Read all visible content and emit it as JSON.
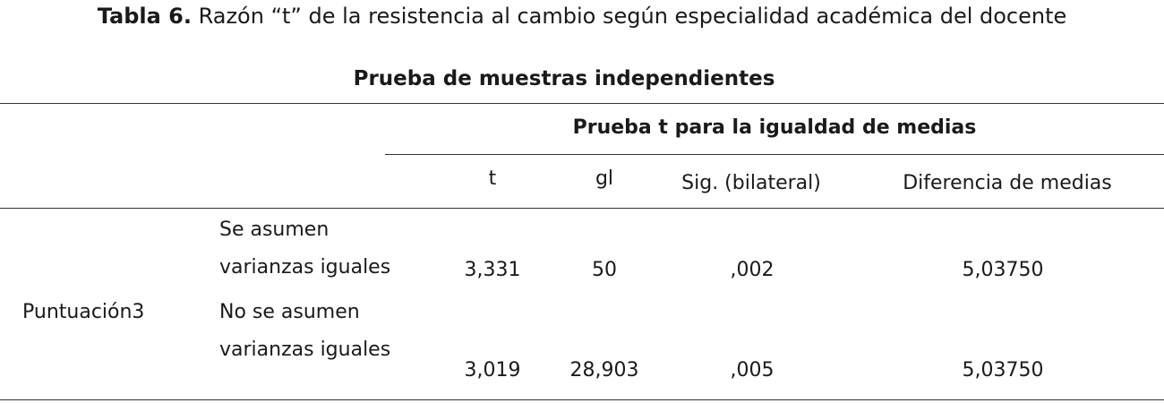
{
  "caption": {
    "bold": "Tabla 6.",
    "rest": " Razón “t” de la resistencia al cambio según especialidad académica del docente"
  },
  "table": {
    "title": "Prueba de muestras independientes",
    "group_header": "Prueba t para la igualdad de medias",
    "columns": [
      "t",
      "gl",
      "Sig. (bilateral)",
      "Diferencia de medias"
    ],
    "row_label": "Puntuación3",
    "rows": [
      {
        "condition_line1": "Se asumen",
        "condition_line2": "varianzas iguales",
        "t": "3,331",
        "gl": "50",
        "sig": ",002",
        "diff": "5,03750"
      },
      {
        "condition_line1": "No se asumen",
        "condition_line2": "varianzas iguales",
        "t": "3,019",
        "gl": "28,903",
        "sig": ",005",
        "diff": "5,03750"
      }
    ]
  }
}
